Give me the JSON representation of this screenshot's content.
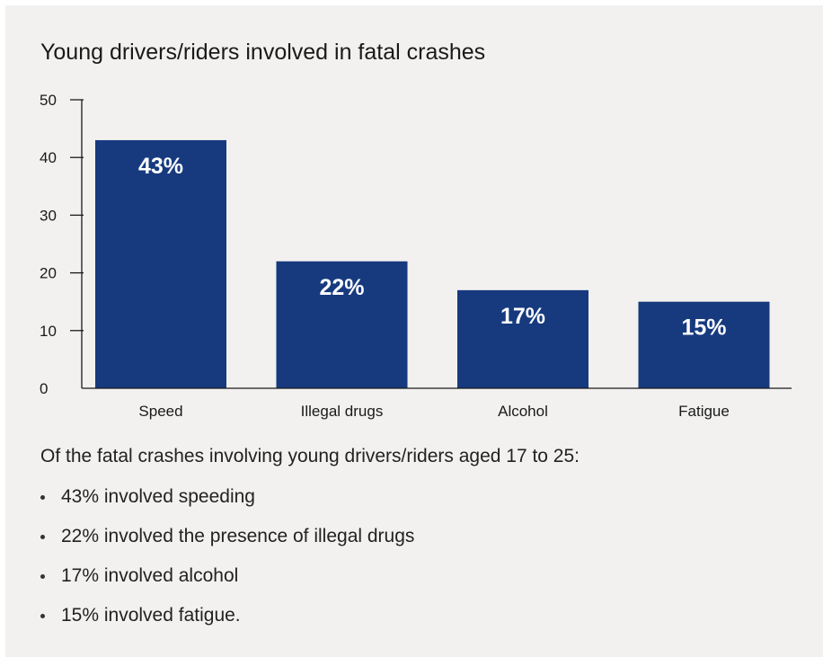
{
  "colors": {
    "background": "#f2f1ef",
    "bar": "#173a7f",
    "bar_label": "#ffffff",
    "axis": "#1a1a1a"
  },
  "chart_data": {
    "type": "bar",
    "title": "Young drivers/riders involved in fatal crashes",
    "xlabel": "",
    "ylabel": "",
    "categories": [
      "Speed",
      "Illegal drugs",
      "Alcohol",
      "Fatigue"
    ],
    "values": [
      43,
      22,
      17,
      15
    ],
    "data_labels": [
      "43%",
      "22%",
      "17%",
      "15%"
    ],
    "ylim": [
      0,
      50
    ],
    "yticks": [
      0,
      10,
      20,
      30,
      40,
      50
    ],
    "grid": false,
    "legend": "none"
  },
  "summary": {
    "intro": "Of the fatal crashes involving young drivers/riders aged 17 to 25:",
    "bullets": [
      "43% involved speeding",
      "22% involved the presence of illegal drugs",
      "17% involved alcohol",
      "15% involved fatigue."
    ]
  }
}
